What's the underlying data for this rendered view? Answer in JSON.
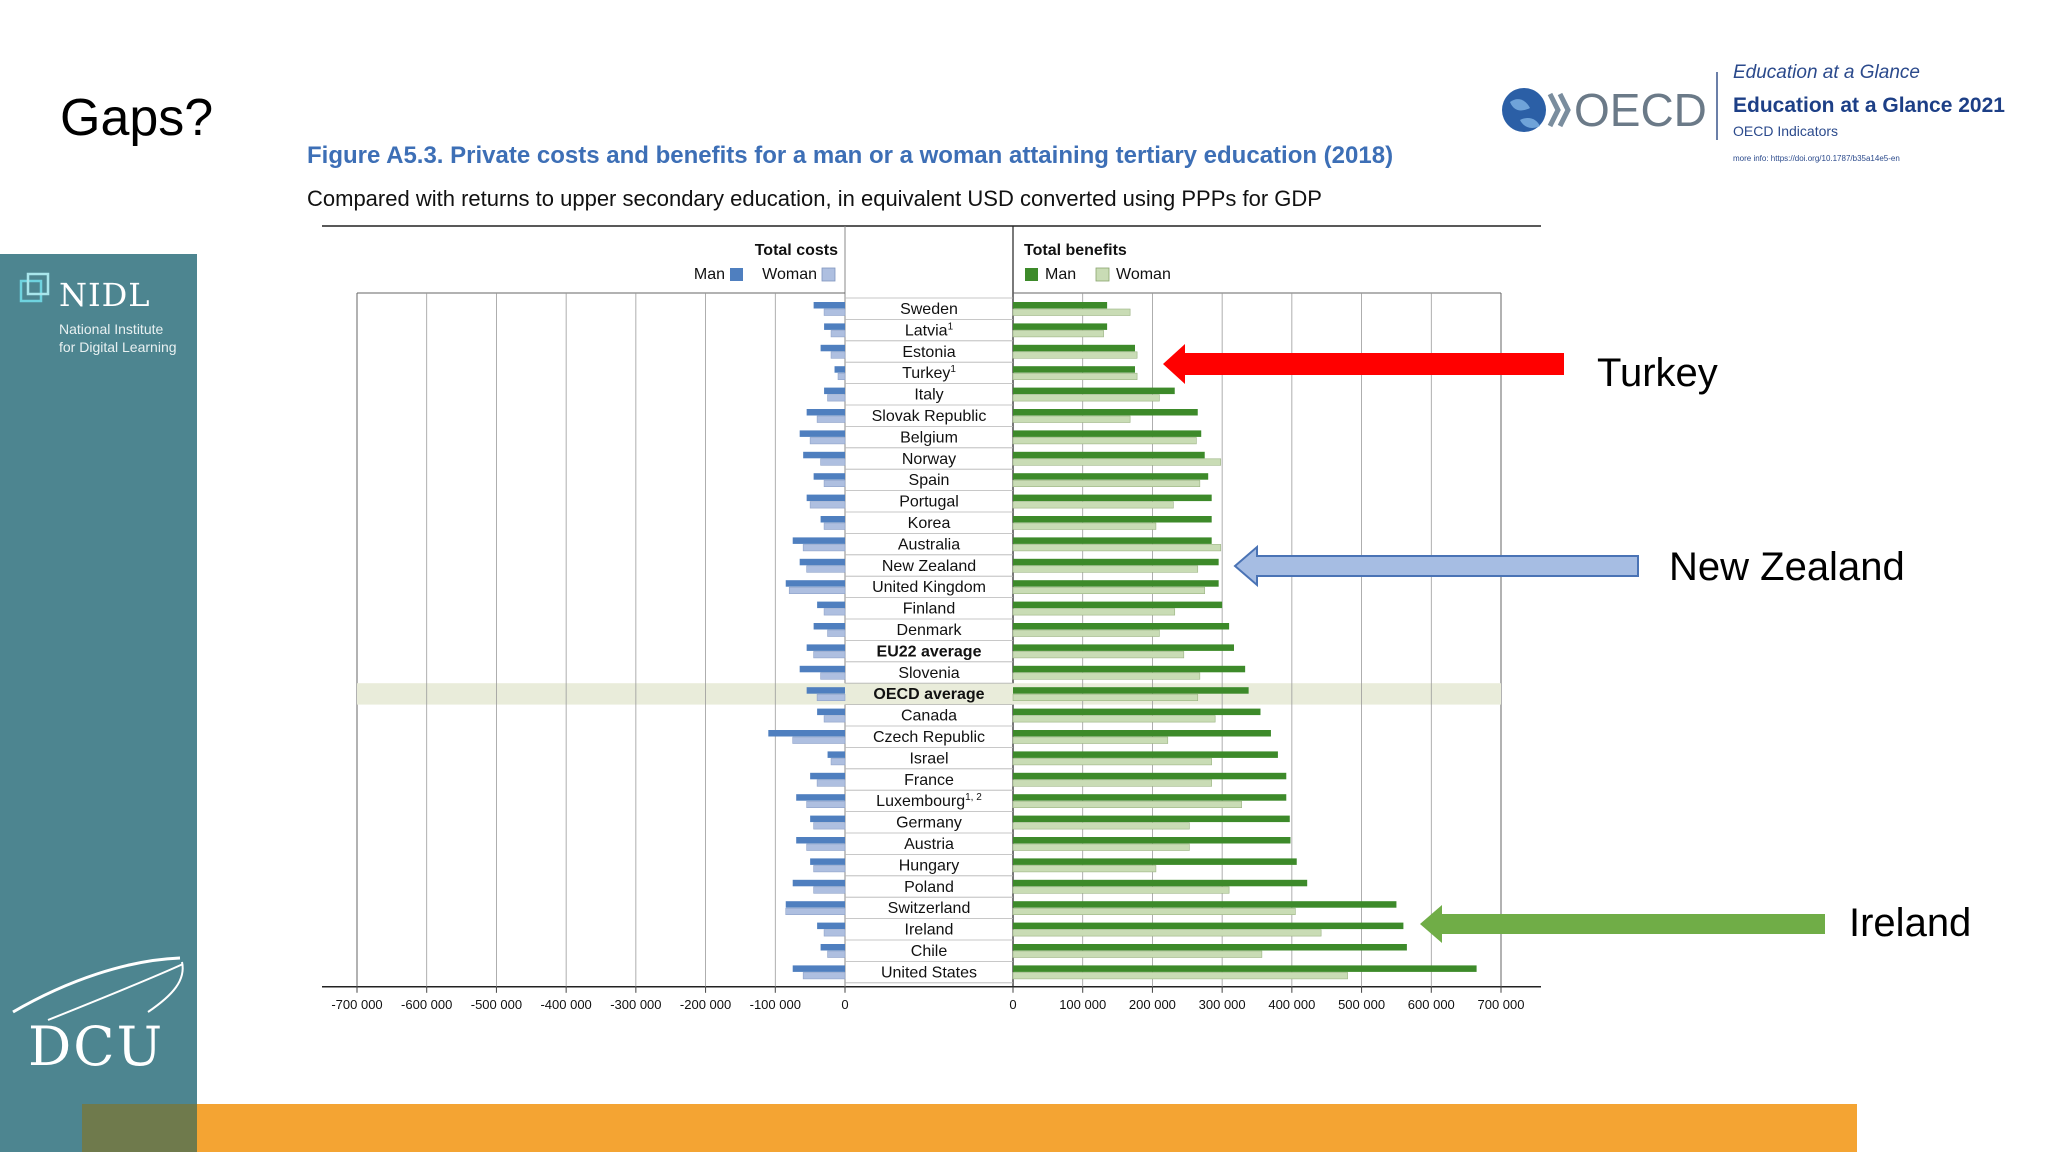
{
  "slide": {
    "title": "Gaps?"
  },
  "sidebar": {
    "nidl_name": "NIDL",
    "nidl_line1": "National Institute",
    "nidl_line2": "for Digital Learning",
    "dcu_name": "DCU"
  },
  "oecd": {
    "logo_text": "OECD",
    "eag_italic": "Education at a Glance",
    "eag_year": "Education at a Glance 2021",
    "indicators": "OECD Indicators",
    "more_info": "more info: https://doi.org/10.1787/b35a14e5-en"
  },
  "figure": {
    "title": "Figure A5.3. Private costs and benefits for a man or a woman attaining tertiary education (2018)",
    "subtitle": "Compared with returns to upper secondary education, in equivalent USD converted using PPPs for GDP"
  },
  "callouts": [
    {
      "label": "Turkey",
      "color": "#ff0000"
    },
    {
      "label": "New Zealand",
      "color": "#a6bde3"
    },
    {
      "label": "Ireland",
      "color": "#70ad47"
    }
  ],
  "colors": {
    "cost_man": "#4f7fbf",
    "cost_woman": "#aebfe0",
    "benefit_man": "#3d8a2a",
    "benefit_woman": "#c9dcb5",
    "highlight_row": "#e9ecda"
  },
  "chart_data": {
    "type": "bar",
    "panels": [
      {
        "title": "Total costs",
        "legend": [
          "Man",
          "Woman"
        ],
        "xlim": [
          -700000,
          0
        ],
        "ticks": [
          "-700 000",
          "-600 000",
          "-500 000",
          "-400 000",
          "-300 000",
          "-200 000",
          "-100 000",
          "0"
        ]
      },
      {
        "title": "Total benefits",
        "legend": [
          "Man",
          "Woman"
        ],
        "xlim": [
          0,
          700000
        ],
        "ticks": [
          "0",
          "100 000",
          "200 000",
          "300 000",
          "400 000",
          "500 000",
          "600 000",
          "700 000"
        ]
      }
    ],
    "highlighted_category": "OECD average",
    "categories": [
      {
        "name": "Sweden",
        "sup": "",
        "bold": false
      },
      {
        "name": "Latvia",
        "sup": "1",
        "bold": false
      },
      {
        "name": "Estonia",
        "sup": "",
        "bold": false
      },
      {
        "name": "Turkey",
        "sup": "1",
        "bold": false
      },
      {
        "name": "Italy",
        "sup": "",
        "bold": false
      },
      {
        "name": "Slovak Republic",
        "sup": "",
        "bold": false
      },
      {
        "name": "Belgium",
        "sup": "",
        "bold": false
      },
      {
        "name": "Norway",
        "sup": "",
        "bold": false
      },
      {
        "name": "Spain",
        "sup": "",
        "bold": false
      },
      {
        "name": "Portugal",
        "sup": "",
        "bold": false
      },
      {
        "name": "Korea",
        "sup": "",
        "bold": false
      },
      {
        "name": "Australia",
        "sup": "",
        "bold": false
      },
      {
        "name": "New Zealand",
        "sup": "",
        "bold": false
      },
      {
        "name": "United Kingdom",
        "sup": "",
        "bold": false
      },
      {
        "name": "Finland",
        "sup": "",
        "bold": false
      },
      {
        "name": "Denmark",
        "sup": "",
        "bold": false
      },
      {
        "name": "EU22 average",
        "sup": "",
        "bold": true
      },
      {
        "name": "Slovenia",
        "sup": "",
        "bold": false
      },
      {
        "name": "OECD average",
        "sup": "",
        "bold": true
      },
      {
        "name": "Canada",
        "sup": "",
        "bold": false
      },
      {
        "name": "Czech Republic",
        "sup": "",
        "bold": false
      },
      {
        "name": "Israel",
        "sup": "",
        "bold": false
      },
      {
        "name": "France",
        "sup": "",
        "bold": false
      },
      {
        "name": "Luxembourg",
        "sup": "1, 2",
        "bold": false
      },
      {
        "name": "Germany",
        "sup": "",
        "bold": false
      },
      {
        "name": "Austria",
        "sup": "",
        "bold": false
      },
      {
        "name": "Hungary",
        "sup": "",
        "bold": false
      },
      {
        "name": "Poland",
        "sup": "",
        "bold": false
      },
      {
        "name": "Switzerland",
        "sup": "",
        "bold": false
      },
      {
        "name": "Ireland",
        "sup": "",
        "bold": false
      },
      {
        "name": "Chile",
        "sup": "",
        "bold": false
      },
      {
        "name": "United States",
        "sup": "",
        "bold": false
      }
    ],
    "series": [
      {
        "name": "Man",
        "panel": "Total costs",
        "values": [
          -45000,
          -30000,
          -35000,
          -15000,
          -30000,
          -55000,
          -65000,
          -60000,
          -45000,
          -55000,
          -35000,
          -75000,
          -65000,
          -85000,
          -40000,
          -45000,
          -55000,
          -65000,
          -55000,
          -40000,
          -110000,
          -25000,
          -50000,
          -70000,
          -50000,
          -70000,
          -50000,
          -75000,
          -85000,
          -40000,
          -35000,
          -75000
        ]
      },
      {
        "name": "Woman",
        "panel": "Total costs",
        "values": [
          -30000,
          -20000,
          -20000,
          -10000,
          -25000,
          -40000,
          -50000,
          -35000,
          -30000,
          -50000,
          -30000,
          -60000,
          -55000,
          -80000,
          -30000,
          -25000,
          -45000,
          -35000,
          -40000,
          -30000,
          -75000,
          -20000,
          -40000,
          -55000,
          -45000,
          -55000,
          -45000,
          -45000,
          -85000,
          -30000,
          -25000,
          -60000
        ]
      },
      {
        "name": "Man",
        "panel": "Total benefits",
        "values": [
          135000,
          135000,
          175000,
          175000,
          232000,
          265000,
          270000,
          275000,
          280000,
          285000,
          285000,
          285000,
          295000,
          295000,
          300000,
          310000,
          317000,
          333000,
          338000,
          355000,
          370000,
          380000,
          392000,
          392000,
          397000,
          398000,
          407000,
          422000,
          550000,
          560000,
          565000,
          665000
        ]
      },
      {
        "name": "Woman",
        "panel": "Total benefits",
        "values": [
          168000,
          130000,
          178000,
          178000,
          210000,
          168000,
          263000,
          298000,
          268000,
          230000,
          205000,
          298000,
          265000,
          275000,
          232000,
          210000,
          245000,
          268000,
          265000,
          290000,
          222000,
          285000,
          285000,
          328000,
          253000,
          253000,
          205000,
          310000,
          405000,
          442000,
          357000,
          480000
        ]
      }
    ]
  }
}
